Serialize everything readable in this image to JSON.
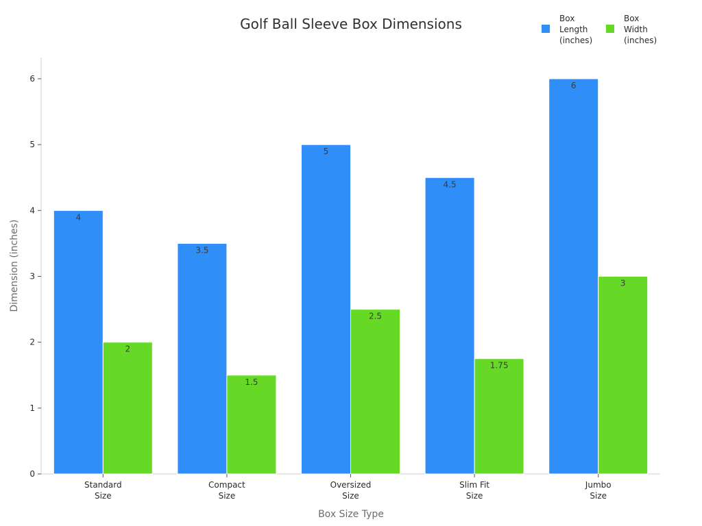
{
  "chart_data": {
    "type": "bar",
    "title": "Golf Ball Sleeve Box Dimensions",
    "xlabel": "Box Size Type",
    "ylabel": "Dimension (inches)",
    "categories": [
      [
        "Standard",
        "Size"
      ],
      [
        "Compact",
        "Size"
      ],
      [
        "Oversized",
        "Size"
      ],
      [
        "Slim Fit",
        "Size"
      ],
      [
        "Jumbo",
        "Size"
      ]
    ],
    "series": [
      {
        "name": [
          "Box",
          "Length",
          "(inches)"
        ],
        "color": "#2f8ef8",
        "values": [
          4,
          3.5,
          5,
          4.5,
          6
        ]
      },
      {
        "name": [
          "Box",
          "Width",
          "(inches)"
        ],
        "color": "#66d926",
        "values": [
          2,
          1.5,
          2.5,
          1.75,
          3
        ]
      }
    ],
    "ylim": [
      0,
      6
    ],
    "yticks": [
      0,
      1,
      2,
      3,
      4,
      5,
      6
    ],
    "grid": false,
    "legend_position": "top-right"
  }
}
